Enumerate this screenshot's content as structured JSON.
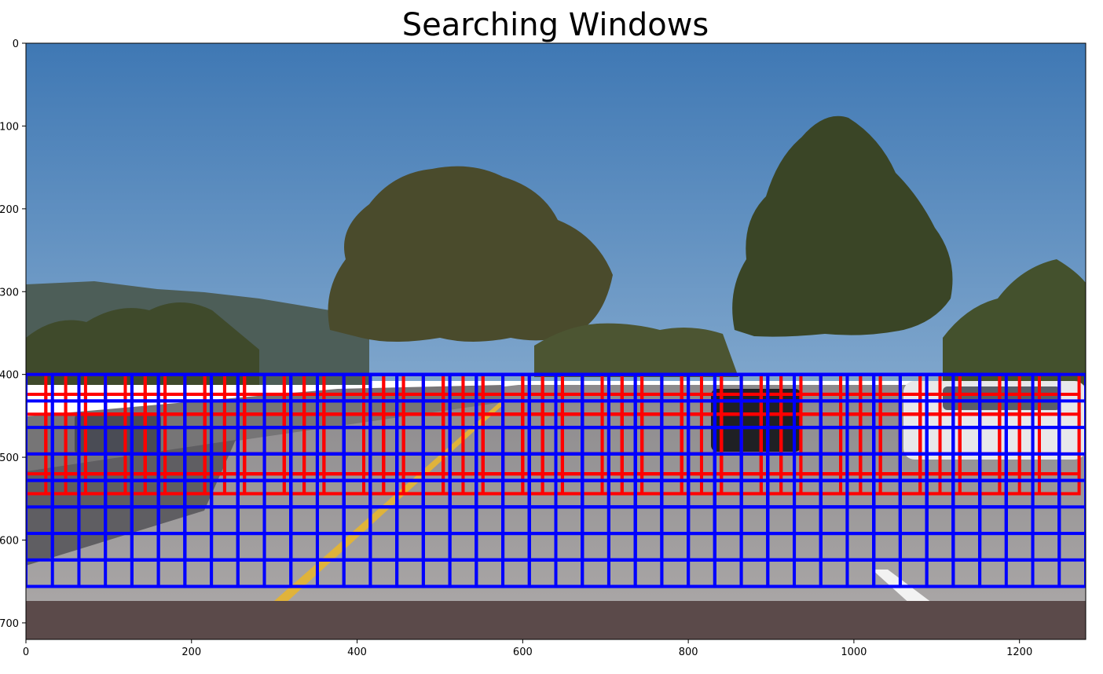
{
  "chart_data": {
    "type": "image",
    "title": "Searching Windows",
    "image_width": 1280,
    "image_height": 720,
    "xlim": [
      0,
      1280
    ],
    "ylim": [
      720,
      0
    ],
    "x_ticks": [
      0,
      200,
      400,
      600,
      800,
      1000,
      1200
    ],
    "y_ticks": [
      0,
      100,
      200,
      300,
      400,
      500,
      600,
      700
    ],
    "grid": false,
    "window_sets": [
      {
        "color": "#ff0000",
        "window_size": 96,
        "y_start": 400,
        "y_end": 544,
        "overlap": 0.75
      },
      {
        "color": "#0000ff",
        "window_size": 128,
        "y_start": 400,
        "y_end": 656,
        "overlap": 0.75
      }
    ]
  }
}
